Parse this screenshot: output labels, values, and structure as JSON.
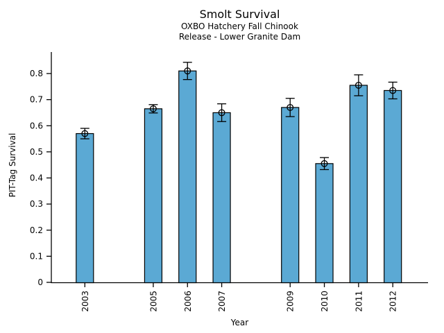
{
  "figure": {
    "background_color": "#ffffff"
  },
  "chart_data": {
    "type": "bar",
    "title": "Smolt Survival",
    "subtitle_line1": "OXBO Hatchery Fall Chinook",
    "subtitle_line2": "Release - Lower Granite Dam",
    "xlabel": "Year",
    "ylabel": "PIT-Tag Survival",
    "categories": [
      "2003",
      "2005",
      "2006",
      "2007",
      "2009",
      "2010",
      "2011",
      "2012"
    ],
    "values": [
      0.57,
      0.665,
      0.81,
      0.65,
      0.67,
      0.455,
      0.755,
      0.735
    ],
    "error_bars": [
      0.02,
      0.016,
      0.033,
      0.034,
      0.035,
      0.023,
      0.04,
      0.032
    ],
    "missing_years": [
      "2004",
      "2008"
    ],
    "ytick_labels": [
      "0",
      "0.1",
      "0.2",
      "0.3",
      "0.4",
      "0.5",
      "0.6",
      "0.7",
      "0.8"
    ],
    "ytick_values": [
      0,
      0.1,
      0.2,
      0.3,
      0.4,
      0.5,
      0.6,
      0.7,
      0.8
    ],
    "ylim": [
      0,
      0.88
    ],
    "grid": "off",
    "legend": "none",
    "bar_color": "#5BA9D4",
    "bar_edge_color": "#000000",
    "error_color": "#000000",
    "marker": "open-circle"
  }
}
